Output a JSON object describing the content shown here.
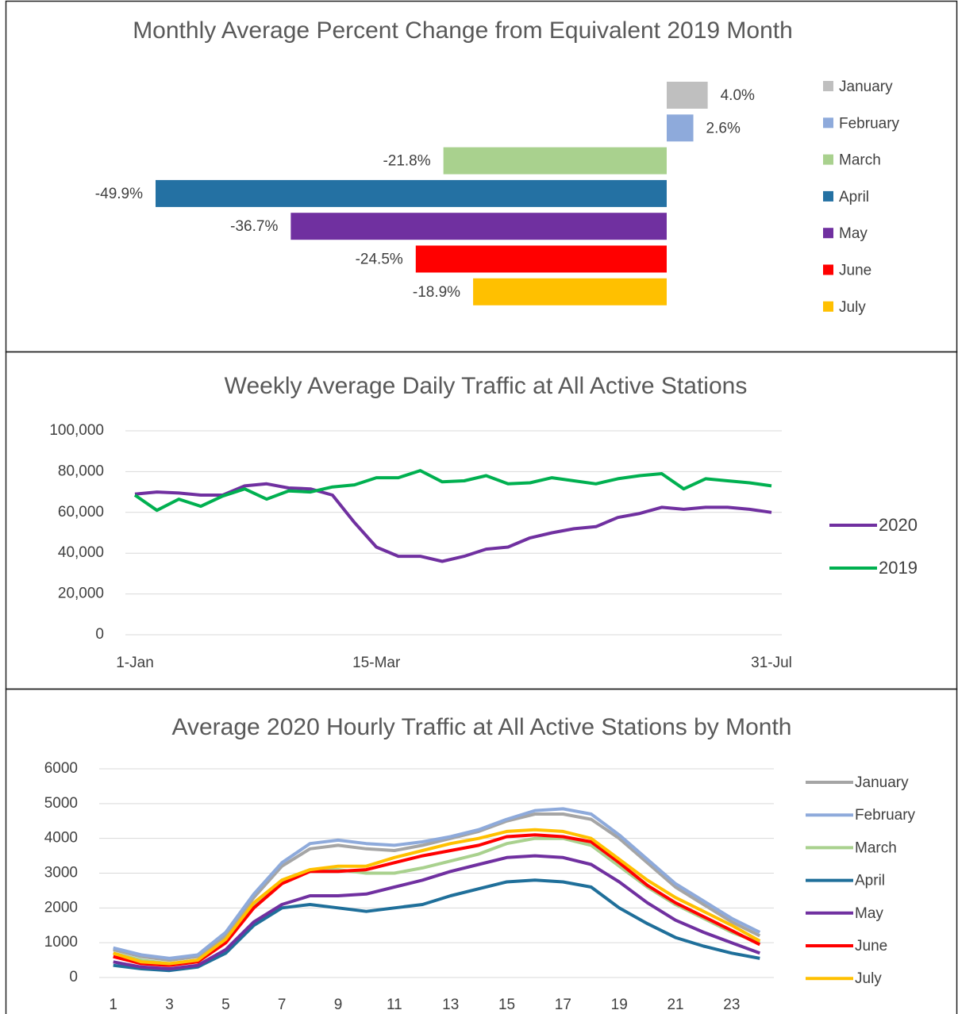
{
  "chart_data": [
    {
      "type": "bar",
      "orientation": "horizontal",
      "title": "Monthly Average Percent Change from Equivalent 2019 Month",
      "categories": [
        "January",
        "February",
        "March",
        "April",
        "May",
        "June",
        "July"
      ],
      "values": [
        4.0,
        2.6,
        -21.8,
        -49.9,
        -36.7,
        -24.5,
        -18.9
      ],
      "value_labels": [
        "4.0%",
        "2.6%",
        "-21.8%",
        "-49.9%",
        "-36.7%",
        "-24.5%",
        "-18.9%"
      ],
      "colors": [
        "#bfbfbf",
        "#8eaadb",
        "#a9d18e",
        "#2471a3",
        "#7030a0",
        "#ff0000",
        "#ffc000"
      ],
      "legend": "right"
    },
    {
      "type": "line",
      "title": "Weekly Average Daily Traffic at All Active Stations",
      "categories": [
        "1-Jan",
        null,
        null,
        null,
        null,
        null,
        null,
        null,
        null,
        null,
        null,
        "15-Mar",
        null,
        null,
        null,
        null,
        null,
        null,
        null,
        null,
        null,
        null,
        null,
        null,
        null,
        null,
        null,
        null,
        null,
        "31-Jul"
      ],
      "series": [
        {
          "name": "2020",
          "color": "#7030a0",
          "values": [
            69000,
            70000,
            69500,
            68500,
            68500,
            73000,
            74000,
            72000,
            71500,
            68500,
            55000,
            43000,
            38500,
            38500,
            36000,
            38500,
            42000,
            43000,
            47500,
            50000,
            52000,
            53000,
            57500,
            59500,
            62500,
            61500,
            62500,
            62500,
            61500,
            60000
          ]
        },
        {
          "name": "2019",
          "color": "#00b050",
          "values": [
            68500,
            61000,
            66500,
            63000,
            68000,
            71500,
            66500,
            70500,
            70000,
            72500,
            73500,
            77000,
            77000,
            80500,
            75000,
            75500,
            78000,
            74000,
            74500,
            77000,
            75500,
            74000,
            76500,
            78000,
            79000,
            71500,
            76500,
            75500,
            74500,
            73000
          ]
        }
      ],
      "ylim": [
        0,
        100000
      ],
      "yticks": [
        0,
        {
          "value": 20000,
          "label": "20,000"
        },
        {
          "value": 40000,
          "label": "40,000"
        },
        {
          "value": 60000,
          "label": "60,000"
        },
        {
          "value": 80000,
          "label": "80,000"
        },
        {
          "value": 100000,
          "label": "100,000"
        }
      ],
      "grid": true,
      "legend": "right"
    },
    {
      "type": "line",
      "title": "Average 2020 Hourly Traffic at All Active Stations by Month",
      "x": [
        1,
        2,
        3,
        4,
        5,
        6,
        7,
        8,
        9,
        10,
        11,
        12,
        13,
        14,
        15,
        16,
        17,
        18,
        19,
        20,
        21,
        22,
        23,
        24
      ],
      "xlim": [
        0.5,
        24.5
      ],
      "xticks": [
        1,
        3,
        5,
        7,
        9,
        11,
        13,
        15,
        17,
        19,
        21,
        23
      ],
      "series": [
        {
          "name": "January",
          "color": "#a5a5a5",
          "values": [
            800,
            600,
            500,
            600,
            1200,
            2300,
            3200,
            3700,
            3800,
            3700,
            3650,
            3800,
            4000,
            4200,
            4500,
            4700,
            4700,
            4550,
            4000,
            3300,
            2600,
            2100,
            1600,
            1200
          ]
        },
        {
          "name": "February",
          "color": "#8eaadb",
          "values": [
            850,
            650,
            550,
            650,
            1300,
            2400,
            3300,
            3850,
            3950,
            3850,
            3800,
            3900,
            4050,
            4250,
            4550,
            4800,
            4850,
            4700,
            4100,
            3400,
            2700,
            2200,
            1700,
            1300
          ]
        },
        {
          "name": "March",
          "color": "#a9d18e",
          "values": [
            700,
            500,
            400,
            500,
            1100,
            2100,
            2800,
            3100,
            3100,
            3000,
            3000,
            3150,
            3350,
            3550,
            3850,
            4000,
            4000,
            3800,
            3200,
            2600,
            2100,
            1700,
            1300,
            1000
          ]
        },
        {
          "name": "April",
          "color": "#1f6f9a",
          "values": [
            350,
            250,
            200,
            300,
            700,
            1500,
            2000,
            2100,
            2000,
            1900,
            2000,
            2100,
            2350,
            2550,
            2750,
            2800,
            2750,
            2600,
            2000,
            1550,
            1150,
            900,
            700,
            550
          ]
        },
        {
          "name": "May",
          "color": "#7030a0",
          "values": [
            450,
            300,
            250,
            350,
            800,
            1600,
            2100,
            2350,
            2350,
            2400,
            2600,
            2800,
            3050,
            3250,
            3450,
            3500,
            3450,
            3250,
            2750,
            2150,
            1650,
            1300,
            1000,
            700
          ]
        },
        {
          "name": "June",
          "color": "#ff0000",
          "values": [
            600,
            400,
            350,
            450,
            1000,
            2000,
            2700,
            3050,
            3050,
            3100,
            3300,
            3500,
            3650,
            3800,
            4050,
            4100,
            4050,
            3900,
            3300,
            2650,
            2150,
            1750,
            1350,
            950
          ]
        },
        {
          "name": "July",
          "color": "#ffc000",
          "values": [
            700,
            450,
            400,
            500,
            1100,
            2150,
            2800,
            3100,
            3200,
            3200,
            3450,
            3650,
            3850,
            4000,
            4200,
            4250,
            4200,
            4000,
            3400,
            2800,
            2300,
            1900,
            1500,
            1050
          ]
        }
      ],
      "ylim": [
        0,
        6000
      ],
      "yticks": [
        0,
        1000,
        2000,
        3000,
        4000,
        5000,
        6000
      ],
      "grid": true,
      "legend": "right"
    }
  ]
}
